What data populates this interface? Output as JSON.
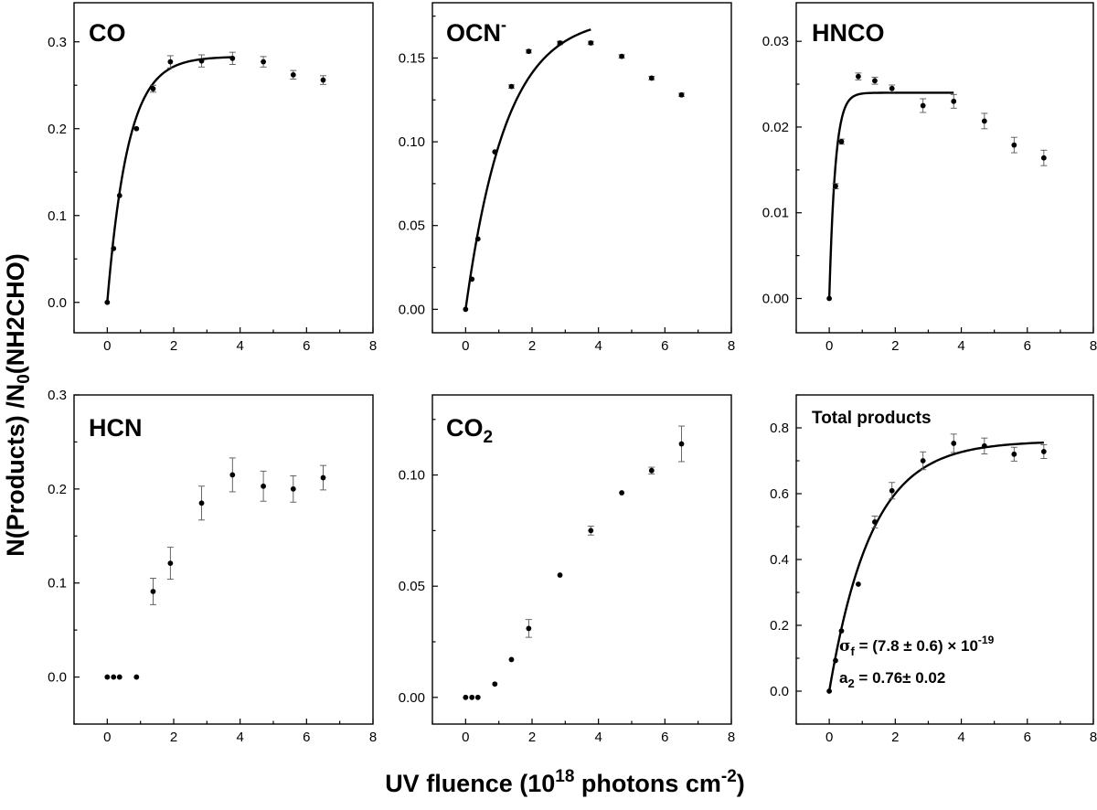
{
  "figure": {
    "ylabel_parts": {
      "main": "N(Products) /N",
      "sub": "0",
      "tail": "(NH2CHO)"
    },
    "xlabel_parts": {
      "main": "UV fluence (10",
      "sup": "18",
      "tail": " photons cm",
      "sup2": "-2",
      "close": ")"
    },
    "annotation_sigma": {
      "sym": "σ",
      "sub": "f",
      "text": " = (7.8 ± 0.6) × 10",
      "sup": "-19"
    },
    "annotation_a2": {
      "sym": "a",
      "sub": "2",
      "text": " = 0.76± 0.02"
    }
  },
  "chart_data": [
    {
      "type": "scatter",
      "label": {
        "main": "CO",
        "sub": "",
        "sup": ""
      },
      "xlim": [
        -1,
        8
      ],
      "xticks": [
        0,
        2,
        4,
        6,
        8
      ],
      "ylim": [
        -0.035,
        0.345
      ],
      "yticks": [
        0.0,
        0.1,
        0.2,
        0.3
      ],
      "ytick_labels": [
        "0.0",
        "0.1",
        "0.2",
        "0.3"
      ],
      "points": [
        {
          "x": 0.0,
          "y": 0.0,
          "err": 0
        },
        {
          "x": 0.19,
          "y": 0.062,
          "err": 0
        },
        {
          "x": 0.37,
          "y": 0.123,
          "err": 0
        },
        {
          "x": 0.88,
          "y": 0.2,
          "err": 0
        },
        {
          "x": 1.38,
          "y": 0.246,
          "err": 0.004
        },
        {
          "x": 1.9,
          "y": 0.277,
          "err": 0.007
        },
        {
          "x": 2.84,
          "y": 0.278,
          "err": 0.007
        },
        {
          "x": 3.77,
          "y": 0.281,
          "err": 0.007
        },
        {
          "x": 4.7,
          "y": 0.277,
          "err": 0.006
        },
        {
          "x": 5.6,
          "y": 0.262,
          "err": 0.005
        },
        {
          "x": 6.5,
          "y": 0.256,
          "err": 0.005
        }
      ],
      "fit": {
        "a": 0.283,
        "k": 1.6,
        "xmax": 3.77
      }
    },
    {
      "type": "scatter",
      "label": {
        "main": "OCN",
        "sub": "",
        "sup": "-"
      },
      "xlim": [
        -1,
        8
      ],
      "xticks": [
        0,
        2,
        4,
        6,
        8
      ],
      "ylim": [
        -0.014,
        0.183
      ],
      "yticks": [
        0.0,
        0.05,
        0.1,
        0.15
      ],
      "ytick_labels": [
        "0.00",
        "0.05",
        "0.10",
        "0.15"
      ],
      "points": [
        {
          "x": 0.0,
          "y": 0.0,
          "err": 0
        },
        {
          "x": 0.19,
          "y": 0.018,
          "err": 0
        },
        {
          "x": 0.37,
          "y": 0.042,
          "err": 0
        },
        {
          "x": 0.88,
          "y": 0.094,
          "err": 0
        },
        {
          "x": 1.38,
          "y": 0.133,
          "err": 0.001
        },
        {
          "x": 1.9,
          "y": 0.154,
          "err": 0.001
        },
        {
          "x": 2.84,
          "y": 0.159,
          "err": 0.001
        },
        {
          "x": 3.77,
          "y": 0.159,
          "err": 0.001
        },
        {
          "x": 4.7,
          "y": 0.151,
          "err": 0.001
        },
        {
          "x": 5.6,
          "y": 0.138,
          "err": 0.001
        },
        {
          "x": 6.5,
          "y": 0.128,
          "err": 0.001
        }
      ],
      "fit": {
        "a": 0.175,
        "k": 0.82,
        "xmax": 3.77
      }
    },
    {
      "type": "scatter",
      "label": {
        "main": "HNCO",
        "sub": "",
        "sup": ""
      },
      "xlim": [
        -1,
        8
      ],
      "xticks": [
        0,
        2,
        4,
        6,
        8
      ],
      "ylim": [
        -0.004,
        0.0345
      ],
      "yticks": [
        0.0,
        0.01,
        0.02,
        0.03
      ],
      "ytick_labels": [
        "0.00",
        "0.01",
        "0.02",
        "0.03"
      ],
      "points": [
        {
          "x": 0.0,
          "y": 0.0,
          "err": 0
        },
        {
          "x": 0.19,
          "y": 0.0131,
          "err": 0.0003
        },
        {
          "x": 0.37,
          "y": 0.0183,
          "err": 0.0003
        },
        {
          "x": 0.88,
          "y": 0.0259,
          "err": 0.0004
        },
        {
          "x": 1.38,
          "y": 0.0254,
          "err": 0.0004
        },
        {
          "x": 1.9,
          "y": 0.0245,
          "err": 0.0004
        },
        {
          "x": 2.84,
          "y": 0.0225,
          "err": 0.0008
        },
        {
          "x": 3.77,
          "y": 0.023,
          "err": 0.0008
        },
        {
          "x": 4.7,
          "y": 0.0207,
          "err": 0.0009
        },
        {
          "x": 5.6,
          "y": 0.0179,
          "err": 0.0009
        },
        {
          "x": 6.5,
          "y": 0.0164,
          "err": 0.0009
        }
      ],
      "fit": {
        "a": 0.024,
        "k": 5.5,
        "xmax": 3.77
      }
    },
    {
      "type": "scatter",
      "label": {
        "main": "HCN",
        "sub": "",
        "sup": ""
      },
      "xlim": [
        -1,
        8
      ],
      "xticks": [
        0,
        2,
        4,
        6,
        8
      ],
      "ylim": [
        -0.05,
        0.3
      ],
      "yticks": [
        0.0,
        0.1,
        0.2,
        0.3
      ],
      "ytick_labels": [
        "0.0",
        "0.1",
        "0.2",
        "0.3"
      ],
      "points": [
        {
          "x": 0.0,
          "y": 0.0,
          "err": 0
        },
        {
          "x": 0.19,
          "y": 0.0,
          "err": 0
        },
        {
          "x": 0.37,
          "y": 0.0,
          "err": 0
        },
        {
          "x": 0.88,
          "y": 0.0,
          "err": 0
        },
        {
          "x": 1.38,
          "y": 0.091,
          "err": 0.014
        },
        {
          "x": 1.9,
          "y": 0.121,
          "err": 0.017
        },
        {
          "x": 2.84,
          "y": 0.185,
          "err": 0.018
        },
        {
          "x": 3.77,
          "y": 0.215,
          "err": 0.018
        },
        {
          "x": 4.7,
          "y": 0.203,
          "err": 0.016
        },
        {
          "x": 5.6,
          "y": 0.2,
          "err": 0.014
        },
        {
          "x": 6.5,
          "y": 0.212,
          "err": 0.013
        }
      ],
      "fit": null
    },
    {
      "type": "scatter",
      "label": {
        "main": "CO",
        "sub": "2",
        "sup": ""
      },
      "xlim": [
        -1,
        8
      ],
      "xticks": [
        0,
        2,
        4,
        6,
        8
      ],
      "ylim": [
        -0.012,
        0.136
      ],
      "yticks": [
        0.0,
        0.05,
        0.1
      ],
      "ytick_labels": [
        "0.00",
        "0.05",
        "0.10"
      ],
      "points": [
        {
          "x": 0.0,
          "y": 0.0,
          "err": 0
        },
        {
          "x": 0.19,
          "y": 0.0,
          "err": 0
        },
        {
          "x": 0.37,
          "y": 0.0,
          "err": 0
        },
        {
          "x": 0.88,
          "y": 0.006,
          "err": 0
        },
        {
          "x": 1.38,
          "y": 0.017,
          "err": 0
        },
        {
          "x": 1.9,
          "y": 0.031,
          "err": 0.004
        },
        {
          "x": 2.84,
          "y": 0.055,
          "err": 0
        },
        {
          "x": 3.77,
          "y": 0.075,
          "err": 0.002
        },
        {
          "x": 4.7,
          "y": 0.092,
          "err": 0
        },
        {
          "x": 5.6,
          "y": 0.102,
          "err": 0.0015
        },
        {
          "x": 6.5,
          "y": 0.114,
          "err": 0.008
        }
      ],
      "fit": null
    },
    {
      "type": "scatter",
      "label": {
        "main": "Total products",
        "sub": "",
        "sup": ""
      },
      "xlim": [
        -1,
        8
      ],
      "xticks": [
        0,
        2,
        4,
        6,
        8
      ],
      "ylim": [
        -0.1,
        0.9
      ],
      "yticks": [
        0.0,
        0.2,
        0.4,
        0.6,
        0.8
      ],
      "ytick_labels": [
        "0.0",
        "0.2",
        "0.4",
        "0.6",
        "0.8"
      ],
      "points": [
        {
          "x": 0.0,
          "y": 0.0,
          "err": 0
        },
        {
          "x": 0.19,
          "y": 0.093,
          "err": 0
        },
        {
          "x": 0.37,
          "y": 0.183,
          "err": 0
        },
        {
          "x": 0.88,
          "y": 0.325,
          "err": 0
        },
        {
          "x": 1.38,
          "y": 0.514,
          "err": 0.018
        },
        {
          "x": 1.9,
          "y": 0.609,
          "err": 0.025
        },
        {
          "x": 2.84,
          "y": 0.7,
          "err": 0.027
        },
        {
          "x": 3.77,
          "y": 0.753,
          "err": 0.028
        },
        {
          "x": 4.7,
          "y": 0.745,
          "err": 0.024
        },
        {
          "x": 5.6,
          "y": 0.72,
          "err": 0.021
        },
        {
          "x": 6.5,
          "y": 0.728,
          "err": 0.021
        }
      ],
      "fit": {
        "a": 0.76,
        "k": 0.78,
        "xmax": 6.5
      }
    }
  ]
}
